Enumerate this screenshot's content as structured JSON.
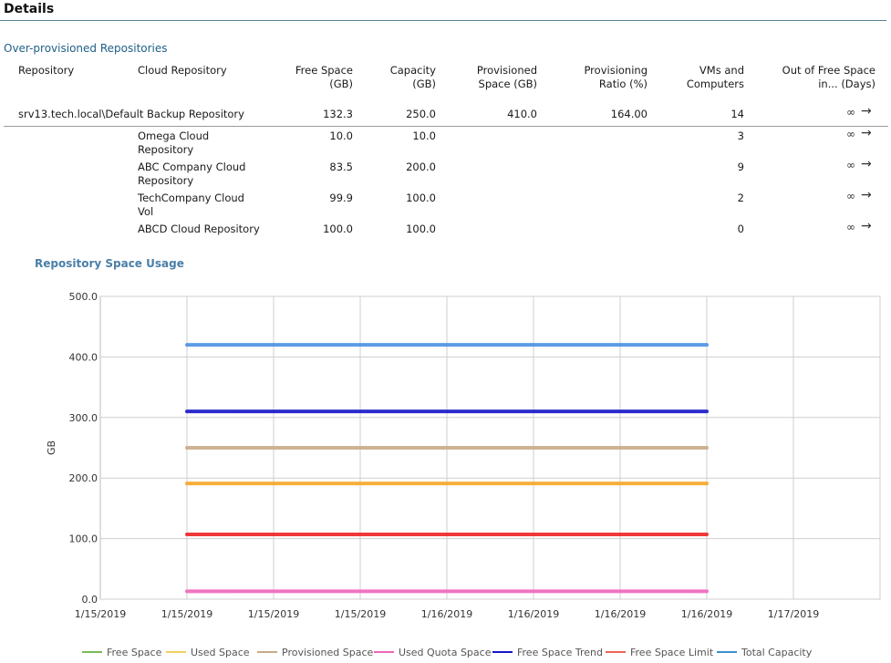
{
  "details": {
    "title": "Details"
  },
  "section": {
    "title": "Over-provisioned Repositories"
  },
  "table": {
    "headers": {
      "repository": "Repository",
      "cloud_repository": "Cloud Repository",
      "free_space": "Free Space\n(GB)",
      "capacity": "Capacity\n(GB)",
      "provisioned": "Provisioned\nSpace (GB)",
      "ratio": "Provisioning\nRatio (%)",
      "vms": "VMs and\nComputers",
      "out_of_free": "Out of Free Space\nin... (Days)"
    },
    "main_row": {
      "repository": "srv13.tech.local\\Default Backup Repository",
      "free_space": "132.3",
      "capacity": "250.0",
      "provisioned": "410.0",
      "ratio": "164.00",
      "vms": "14",
      "out_of_free": "∞",
      "arrow": "→"
    },
    "sub_rows": [
      {
        "cloud_repository": "Omega Cloud\nRepository",
        "free_space": "10.0",
        "capacity": "10.0",
        "vms": "3",
        "out_of_free": "∞",
        "arrow": "→"
      },
      {
        "cloud_repository": "ABC Company Cloud\nRepository",
        "free_space": "83.5",
        "capacity": "200.0",
        "vms": "9",
        "out_of_free": "∞",
        "arrow": "→"
      },
      {
        "cloud_repository": "TechCompany Cloud\nVol",
        "free_space": "99.9",
        "capacity": "100.0",
        "vms": "2",
        "out_of_free": "∞",
        "arrow": "→"
      },
      {
        "cloud_repository": "ABCD Cloud Repository",
        "free_space": "100.0",
        "capacity": "100.0",
        "vms": "0",
        "out_of_free": "∞",
        "arrow": "→"
      }
    ]
  },
  "chart_data": {
    "type": "line",
    "title": "Repository Space Usage",
    "ylabel": "GB",
    "xlabel": "",
    "ylim": [
      0,
      500
    ],
    "yticks": [
      "0.0",
      "100.0",
      "200.0",
      "300.0",
      "400.0",
      "500.0"
    ],
    "x_tick_labels": [
      "1/15/2019",
      "1/15/2019",
      "1/15/2019",
      "1/15/2019",
      "1/16/2019",
      "1/16/2019",
      "1/16/2019",
      "1/16/2019",
      "1/17/2019"
    ],
    "grid": true,
    "legend_position": "bottom",
    "series": [
      {
        "name": "Free Space",
        "color": "#77bb55",
        "values": []
      },
      {
        "name": "Used Space",
        "color": "#f5a623",
        "values": [
          191,
          191,
          191,
          191,
          191,
          191,
          191
        ]
      },
      {
        "name": "Provisioned Space",
        "color": "#c8aa88",
        "values": [
          250,
          250,
          250,
          250,
          250,
          250,
          250
        ]
      },
      {
        "name": "Used Quota Space",
        "color": "#ee66bb",
        "values": [
          13,
          13,
          13,
          13,
          13,
          13,
          13
        ]
      },
      {
        "name": "Free Space Trend",
        "color": "#1515c8",
        "values": [
          310,
          310,
          310,
          310,
          310,
          310,
          310
        ]
      },
      {
        "name": "Free Space Limit",
        "color": "#ee2222",
        "values": [
          107,
          107,
          107,
          107,
          107,
          107,
          107
        ]
      },
      {
        "name": "Total Capacity",
        "color": "#4a90e2",
        "values": [
          420,
          420,
          420,
          420,
          420,
          420,
          420
        ]
      }
    ],
    "legend_colors": {
      "Free Space": "#77bb55",
      "Used Space": "#f0d060",
      "Provisioned Space": "#c8aa88",
      "Used Quota Space": "#ee66bb",
      "Free Space Trend": "#1515c8",
      "Free Space Limit": "#ee6655",
      "Total Capacity": "#3a8fd0"
    }
  }
}
